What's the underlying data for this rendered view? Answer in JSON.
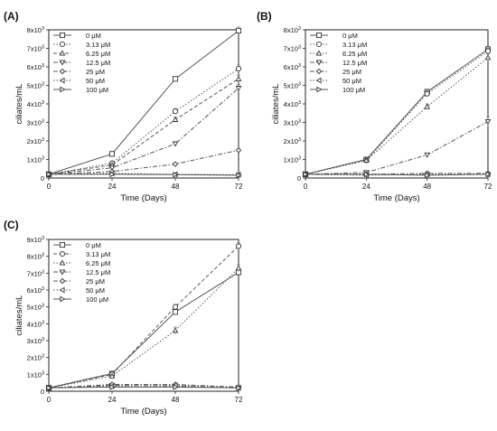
{
  "figure_labels": [
    "(A)",
    "(B)",
    "(C)"
  ],
  "chart_data": [
    {
      "panel": "(A)",
      "type": "line",
      "xlabel": "Time (Days)",
      "ylabel": "ciliates/mL",
      "x": [
        0,
        24,
        48,
        72
      ],
      "xlim": [
        0,
        72
      ],
      "ylim": [
        0,
        8000
      ],
      "yticks": [
        {
          "value": 0,
          "mant": "0",
          "exp": ""
        },
        {
          "value": 1000,
          "mant": "1x10",
          "exp": "3"
        },
        {
          "value": 2000,
          "mant": "2x10",
          "exp": "3"
        },
        {
          "value": 3000,
          "mant": "3x10",
          "exp": "3"
        },
        {
          "value": 4000,
          "mant": "4x10",
          "exp": "3"
        },
        {
          "value": 5000,
          "mant": "5x10",
          "exp": "3"
        },
        {
          "value": 6000,
          "mant": "6x10",
          "exp": "3"
        },
        {
          "value": 7000,
          "mant": "7x10",
          "exp": "3"
        },
        {
          "value": 8000,
          "mant": "8x10",
          "exp": "3"
        }
      ],
      "xticks": [
        "0",
        "24",
        "48",
        "72"
      ],
      "legend_position": "top-left",
      "series": [
        {
          "name": "0 μM",
          "marker": "square",
          "dash": "solid",
          "values": [
            200,
            1300,
            5350,
            7950
          ],
          "err": [
            0,
            80,
            80,
            200
          ]
        },
        {
          "name": "3.13 μM",
          "marker": "circle",
          "dash": "dot",
          "values": [
            200,
            800,
            3600,
            5900
          ],
          "err": [
            0,
            60,
            150,
            200
          ]
        },
        {
          "name": "6.25 μM",
          "marker": "triangle-up",
          "dash": "dash",
          "values": [
            200,
            700,
            3150,
            5350
          ],
          "err": [
            0,
            60,
            150,
            200
          ]
        },
        {
          "name": "12.5 μM",
          "marker": "triangle-down",
          "dash": "dashdot",
          "values": [
            200,
            550,
            1850,
            4850
          ],
          "err": [
            0,
            50,
            100,
            200
          ]
        },
        {
          "name": "25 μM",
          "marker": "diamond",
          "dash": "dashdot",
          "values": [
            200,
            350,
            750,
            1500
          ],
          "err": [
            0,
            30,
            60,
            60
          ]
        },
        {
          "name": "50 μM",
          "marker": "triangle-left",
          "dash": "dot",
          "values": [
            200,
            250,
            200,
            180
          ],
          "err": [
            0,
            0,
            0,
            0
          ]
        },
        {
          "name": "100 μM",
          "marker": "triangle-right",
          "dash": "solid",
          "values": [
            200,
            200,
            180,
            150
          ],
          "err": [
            0,
            0,
            0,
            0
          ]
        }
      ]
    },
    {
      "panel": "(B)",
      "type": "line",
      "xlabel": "Time (Days)",
      "ylabel": "ciliates/mL",
      "x": [
        0,
        24,
        48,
        72
      ],
      "xlim": [
        0,
        72
      ],
      "ylim": [
        0,
        8000
      ],
      "yticks": [
        {
          "value": 0,
          "mant": "0",
          "exp": ""
        },
        {
          "value": 1000,
          "mant": "1x10",
          "exp": "3"
        },
        {
          "value": 2000,
          "mant": "2x10",
          "exp": "3"
        },
        {
          "value": 3000,
          "mant": "3x10",
          "exp": "3"
        },
        {
          "value": 4000,
          "mant": "4x10",
          "exp": "3"
        },
        {
          "value": 5000,
          "mant": "5x10",
          "exp": "3"
        },
        {
          "value": 6000,
          "mant": "6x10",
          "exp": "3"
        },
        {
          "value": 7000,
          "mant": "7x10",
          "exp": "3"
        },
        {
          "value": 8000,
          "mant": "8x10",
          "exp": "3"
        }
      ],
      "xticks": [
        "0",
        "24",
        "48",
        "72"
      ],
      "legend_position": "top-left",
      "series": [
        {
          "name": "0 μM",
          "marker": "square",
          "dash": "solid",
          "values": [
            200,
            1000,
            4650,
            6950
          ],
          "err": [
            0,
            60,
            150,
            150
          ]
        },
        {
          "name": "3.13 μM",
          "marker": "circle",
          "dash": "dot",
          "values": [
            200,
            950,
            4550,
            6850
          ],
          "err": [
            0,
            60,
            150,
            150
          ]
        },
        {
          "name": "6.25 μM",
          "marker": "triangle-up",
          "dash": "dot",
          "values": [
            200,
            950,
            3850,
            6500
          ],
          "err": [
            0,
            60,
            150,
            200
          ]
        },
        {
          "name": "12.5 μM",
          "marker": "triangle-down",
          "dash": "dashdot",
          "values": [
            200,
            300,
            1250,
            3050
          ],
          "err": [
            0,
            30,
            60,
            250
          ]
        },
        {
          "name": "25 μM",
          "marker": "diamond",
          "dash": "dashdot",
          "values": [
            200,
            200,
            250,
            250
          ],
          "err": [
            0,
            0,
            0,
            0
          ]
        },
        {
          "name": "50 μM",
          "marker": "triangle-left",
          "dash": "dot",
          "values": [
            200,
            150,
            200,
            200
          ],
          "err": [
            0,
            0,
            0,
            0
          ]
        },
        {
          "name": "100 μM",
          "marker": "triangle-right",
          "dash": "solid",
          "values": [
            200,
            200,
            150,
            200
          ],
          "err": [
            0,
            0,
            0,
            0
          ]
        }
      ]
    },
    {
      "panel": "(C)",
      "type": "line",
      "xlabel": "Time (Days)",
      "ylabel": "ciliates/mL",
      "x": [
        0,
        24,
        48,
        72
      ],
      "xlim": [
        0,
        72
      ],
      "ylim": [
        0,
        9000
      ],
      "yticks": [
        {
          "value": 0,
          "mant": "0",
          "exp": ""
        },
        {
          "value": 1000,
          "mant": "1x10",
          "exp": "3"
        },
        {
          "value": 2000,
          "mant": "2x10",
          "exp": "3"
        },
        {
          "value": 3000,
          "mant": "3x10",
          "exp": "3"
        },
        {
          "value": 4000,
          "mant": "4x10",
          "exp": "3"
        },
        {
          "value": 5000,
          "mant": "5x10",
          "exp": "3"
        },
        {
          "value": 6000,
          "mant": "6x10",
          "exp": "3"
        },
        {
          "value": 7000,
          "mant": "7x10",
          "exp": "3"
        },
        {
          "value": 8000,
          "mant": "8x10",
          "exp": "3"
        },
        {
          "value": 9000,
          "mant": "9x10",
          "exp": "3"
        }
      ],
      "xticks": [
        "0",
        "24",
        "48",
        "72"
      ],
      "legend_position": "top-left",
      "series": [
        {
          "name": "0 μM",
          "marker": "square",
          "dash": "solid",
          "values": [
            200,
            1050,
            4700,
            7050
          ],
          "err": [
            0,
            60,
            150,
            150
          ]
        },
        {
          "name": "3.13 μM",
          "marker": "circle",
          "dash": "dash",
          "values": [
            200,
            1000,
            5000,
            8600
          ],
          "err": [
            0,
            60,
            150,
            200
          ]
        },
        {
          "name": "6.25 μM",
          "marker": "triangle-up",
          "dash": "dot",
          "values": [
            200,
            900,
            3600,
            7300
          ],
          "err": [
            0,
            60,
            200,
            200
          ]
        },
        {
          "name": "12.5 μM",
          "marker": "triangle-down",
          "dash": "dashdot",
          "values": [
            200,
            350,
            300,
            200
          ],
          "err": [
            0,
            0,
            0,
            0
          ]
        },
        {
          "name": "25 μM",
          "marker": "diamond",
          "dash": "dashdot",
          "values": [
            200,
            400,
            400,
            250
          ],
          "err": [
            0,
            0,
            0,
            0
          ]
        },
        {
          "name": "50 μM",
          "marker": "triangle-left",
          "dash": "dot",
          "values": [
            200,
            300,
            350,
            200
          ],
          "err": [
            0,
            0,
            0,
            0
          ]
        },
        {
          "name": "100 μM",
          "marker": "triangle-right",
          "dash": "solid",
          "values": [
            200,
            250,
            250,
            200
          ],
          "err": [
            0,
            0,
            0,
            0
          ]
        }
      ]
    }
  ]
}
